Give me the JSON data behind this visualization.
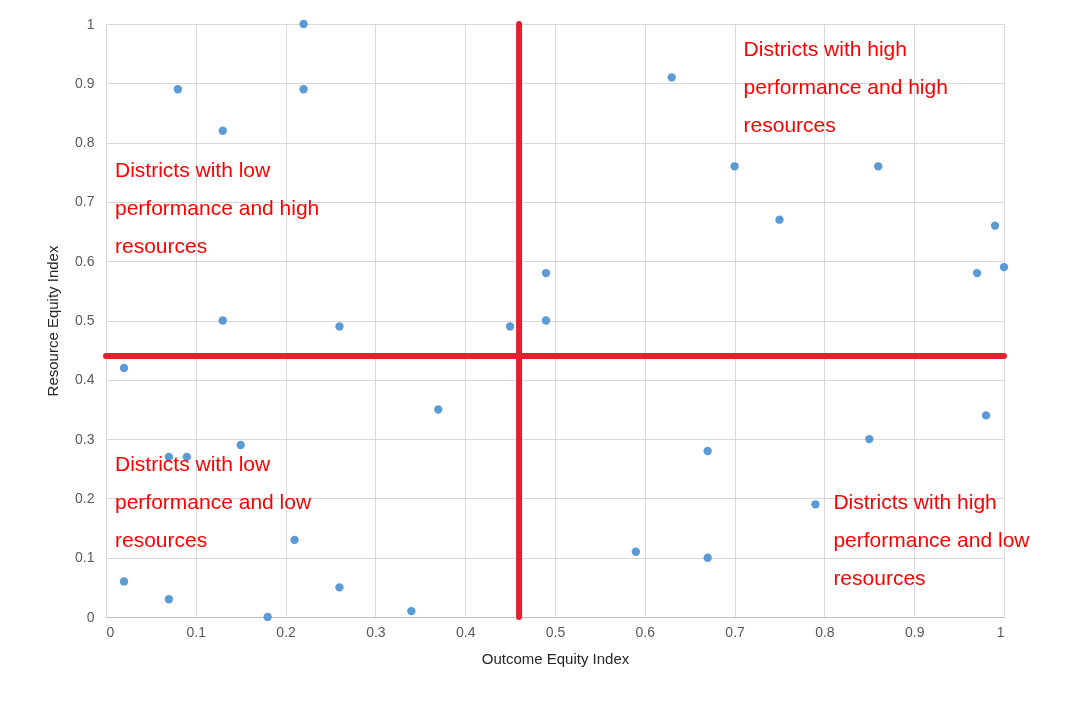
{
  "chart_data": {
    "type": "scatter",
    "xlabel": "Outcome Equity Index",
    "ylabel": "Resource Equity Index",
    "x": [
      0.22,
      0.08,
      0.22,
      0.13,
      0.63,
      0.7,
      0.86,
      0.75,
      0.99,
      0.97,
      1.0,
      0.49,
      0.49,
      0.45,
      0.13,
      0.26,
      0.02,
      0.37,
      0.15,
      0.07,
      0.09,
      0.67,
      0.85,
      0.98,
      0.79,
      0.21,
      0.59,
      0.67,
      0.02,
      0.07,
      0.26,
      0.34,
      0.18
    ],
    "series": [
      {
        "color": "#5b9bd5",
        "values": [
          1.0,
          0.89,
          0.89,
          0.82,
          0.91,
          0.76,
          0.76,
          0.67,
          0.66,
          0.58,
          0.59,
          0.58,
          0.5,
          0.49,
          0.5,
          0.49,
          0.42,
          0.35,
          0.29,
          0.27,
          0.27,
          0.28,
          0.3,
          0.34,
          0.19,
          0.13,
          0.11,
          0.1,
          0.06,
          0.03,
          0.05,
          0.01,
          0.0
        ]
      }
    ],
    "xlim": [
      0,
      1
    ],
    "ylim": [
      0,
      1
    ],
    "xticks": [
      0,
      0.1,
      0.2,
      0.3,
      0.4,
      0.5,
      0.6,
      0.7,
      0.8,
      0.9,
      1
    ],
    "yticks": [
      0,
      0.1,
      0.2,
      0.3,
      0.4,
      0.5,
      0.6,
      0.7,
      0.8,
      0.9,
      1
    ],
    "grid": true,
    "marker": "circle",
    "ref_lines": [
      {
        "axis": "x",
        "value": 0.46,
        "color": "#e3202e"
      },
      {
        "axis": "y",
        "value": 0.44,
        "color": "#e3202e"
      }
    ],
    "annotations": [
      "Districts with high\nperformance and high\nresources",
      "Districts with low\nperformance and high\nresources",
      "Districts with low\nperformance and low\nresources",
      "Districts with high\nperformance and low\nresources"
    ]
  }
}
